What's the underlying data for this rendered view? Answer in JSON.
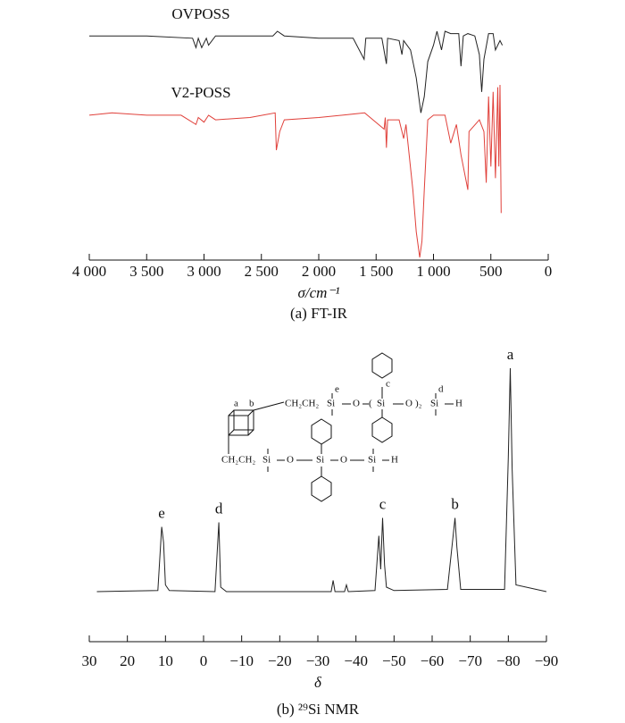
{
  "chart_data": [
    {
      "type": "line",
      "caption": "(a) FT-IR",
      "xlabel": "σ/cm⁻¹",
      "xlim": [
        4000,
        0
      ],
      "xticks": [
        {
          "value": 4000,
          "label": "4 000"
        },
        {
          "value": 3500,
          "label": "3 500"
        },
        {
          "value": 3000,
          "label": "3 000"
        },
        {
          "value": 2500,
          "label": "2 500"
        },
        {
          "value": 2000,
          "label": "2 000"
        },
        {
          "value": 1500,
          "label": "1 500"
        },
        {
          "value": 1000,
          "label": "1 000"
        },
        500,
        0
      ],
      "series": [
        {
          "name": "OVPOSS",
          "color": "#222222",
          "x": [
            4000,
            3500,
            3100,
            3070,
            3050,
            3020,
            2980,
            2960,
            2900,
            2400,
            2360,
            2300,
            2000,
            1700,
            1605,
            1590,
            1450,
            1410,
            1400,
            1300,
            1275,
            1260,
            1200,
            1150,
            1110,
            1080,
            1050,
            1000,
            970,
            930,
            900,
            850,
            780,
            760,
            740,
            700,
            640,
            600,
            580,
            560,
            520,
            480,
            460,
            420,
            400
          ],
          "values": [
            96,
            96,
            95,
            91,
            95,
            91,
            95,
            92,
            96,
            96,
            98,
            96,
            95,
            95,
            86,
            95,
            95,
            84,
            95,
            94,
            88,
            94,
            90,
            78,
            63,
            70,
            85,
            92,
            98,
            90,
            98,
            97,
            97,
            83,
            96,
            97,
            96,
            88,
            72,
            86,
            97,
            97,
            90,
            94,
            92
          ]
        },
        {
          "name": "V2-POSS",
          "color": "#e0403a",
          "x": [
            4000,
            3800,
            3500,
            3200,
            3070,
            3050,
            3000,
            2960,
            2900,
            2600,
            2380,
            2370,
            2340,
            2300,
            2000,
            1600,
            1430,
            1420,
            1410,
            1400,
            1300,
            1260,
            1240,
            1180,
            1150,
            1120,
            1100,
            1080,
            1050,
            1000,
            900,
            850,
            800,
            760,
            700,
            690,
            600,
            560,
            540,
            520,
            500,
            480,
            460,
            440,
            430,
            420,
            410
          ],
          "values": [
            62,
            63,
            62,
            62,
            58,
            61,
            59,
            62,
            60,
            61,
            63,
            47,
            55,
            60,
            61,
            63,
            56,
            61,
            48,
            60,
            60,
            52,
            58,
            30,
            12,
            1,
            8,
            30,
            60,
            62,
            62,
            50,
            58,
            45,
            30,
            55,
            60,
            55,
            33,
            70,
            40,
            72,
            35,
            74,
            40,
            75,
            20
          ]
        }
      ]
    },
    {
      "type": "line",
      "caption": "(b) ²⁹Si NMR",
      "xlabel": "δ",
      "xlim": [
        30,
        -90
      ],
      "xticks": [
        30,
        20,
        10,
        0,
        {
          "value": -10,
          "label": "−10"
        },
        {
          "value": -20,
          "label": "−20"
        },
        {
          "value": -30,
          "label": "−30"
        },
        {
          "value": -40,
          "label": "−40"
        },
        {
          "value": -50,
          "label": "−50"
        },
        {
          "value": -60,
          "label": "−60"
        },
        {
          "value": -70,
          "label": "−70"
        },
        {
          "value": -80,
          "label": "−80"
        },
        {
          "value": -90,
          "label": "−90"
        }
      ],
      "series": [
        {
          "name": "²⁹Si NMR",
          "color": "#222222",
          "x": [
            28,
            12,
            11,
            10.5,
            10,
            9,
            -3,
            -4,
            -4.5,
            -6,
            -20,
            -33.5,
            -34,
            -34.5,
            -37,
            -37.5,
            -38,
            -45,
            -46,
            -46.5,
            -47,
            -47.5,
            -48,
            -50,
            -64,
            -65.5,
            -66,
            -66.5,
            -67.5,
            -79,
            -80,
            -80.5,
            -81,
            -82,
            -90
          ],
          "values": [
            0,
            0.5,
            29,
            22,
            3,
            0.5,
            0,
            31,
            2,
            0,
            0,
            0,
            5,
            0,
            0,
            3,
            0,
            0.5,
            25,
            10,
            33,
            12,
            2,
            0.5,
            1,
            25,
            33,
            20,
            1,
            1,
            60,
            100,
            55,
            3,
            0
          ]
        }
      ],
      "peaks": [
        {
          "label": "e",
          "x": 11
        },
        {
          "label": "d",
          "x": -4
        },
        {
          "label": "c",
          "x": -47
        },
        {
          "label": "b",
          "x": -66
        },
        {
          "label": "a",
          "x": -80.5
        }
      ]
    }
  ],
  "structure": {
    "labels": [
      "a",
      "b",
      "CH₂CH₂",
      "Si",
      "e",
      "O",
      "(",
      "Si",
      "c",
      "O",
      ")₂",
      "Si",
      "d",
      "H",
      "CH₂CH₂",
      "Si",
      "O",
      "Si",
      "O",
      "Si",
      "H"
    ]
  }
}
